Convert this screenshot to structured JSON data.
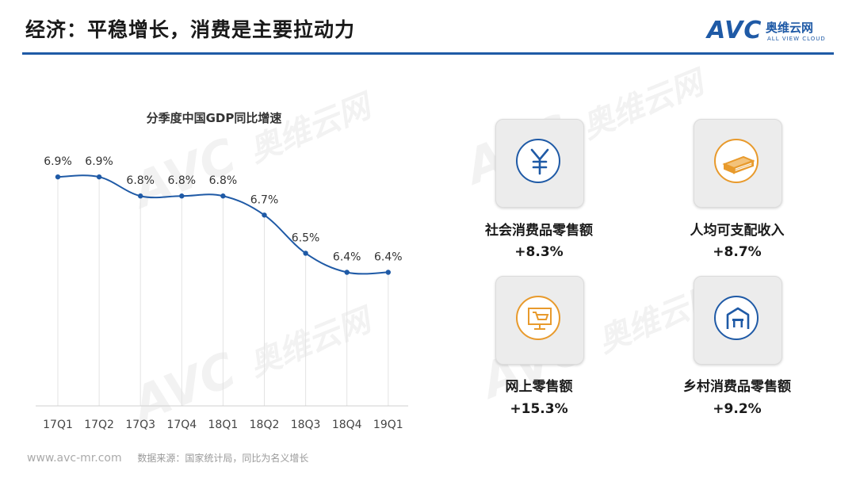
{
  "header": {
    "title": "经济：平稳增长，消费是主要拉动力"
  },
  "logo": {
    "brand": "AVC",
    "cn": "奥维云网",
    "en": "ALL VIEW CLOUD"
  },
  "watermark": {
    "brand": "AVC",
    "cn": "奥维云网",
    "en": "ALL VIEW CLOUD"
  },
  "chart_data": {
    "type": "line",
    "title": "分季度中国GDP同比增速",
    "categories": [
      "17Q1",
      "17Q2",
      "17Q3",
      "17Q4",
      "18Q1",
      "18Q2",
      "18Q3",
      "18Q4",
      "19Q1"
    ],
    "values": [
      6.9,
      6.9,
      6.8,
      6.8,
      6.8,
      6.7,
      6.5,
      6.4,
      6.4
    ],
    "data_labels": [
      "6.9%",
      "6.9%",
      "6.8%",
      "6.8%",
      "6.8%",
      "6.7%",
      "6.5%",
      "6.4%",
      "6.4%"
    ],
    "ylim": [
      5.7,
      7.1
    ],
    "grid": "vertical",
    "color": "#1f5aa6"
  },
  "cards": [
    {
      "label": "社会消费品零售额",
      "value": "+8.3%",
      "icon": "yuan-icon",
      "color": "#1f5aa6"
    },
    {
      "label": "人均可支配收入",
      "value": "+8.7%",
      "icon": "money-stack-icon",
      "color": "#e89a2c"
    },
    {
      "label": "网上零售额",
      "value": "+15.3%",
      "icon": "online-cart-icon",
      "color": "#e89a2c"
    },
    {
      "label": "乡村消费品零售额",
      "value": "+9.2%",
      "icon": "rural-store-icon",
      "color": "#1f5aa6"
    }
  ],
  "footer": {
    "url": "www.avc-mr.com",
    "source": "数据来源：国家统计局，同比为名义增长"
  }
}
